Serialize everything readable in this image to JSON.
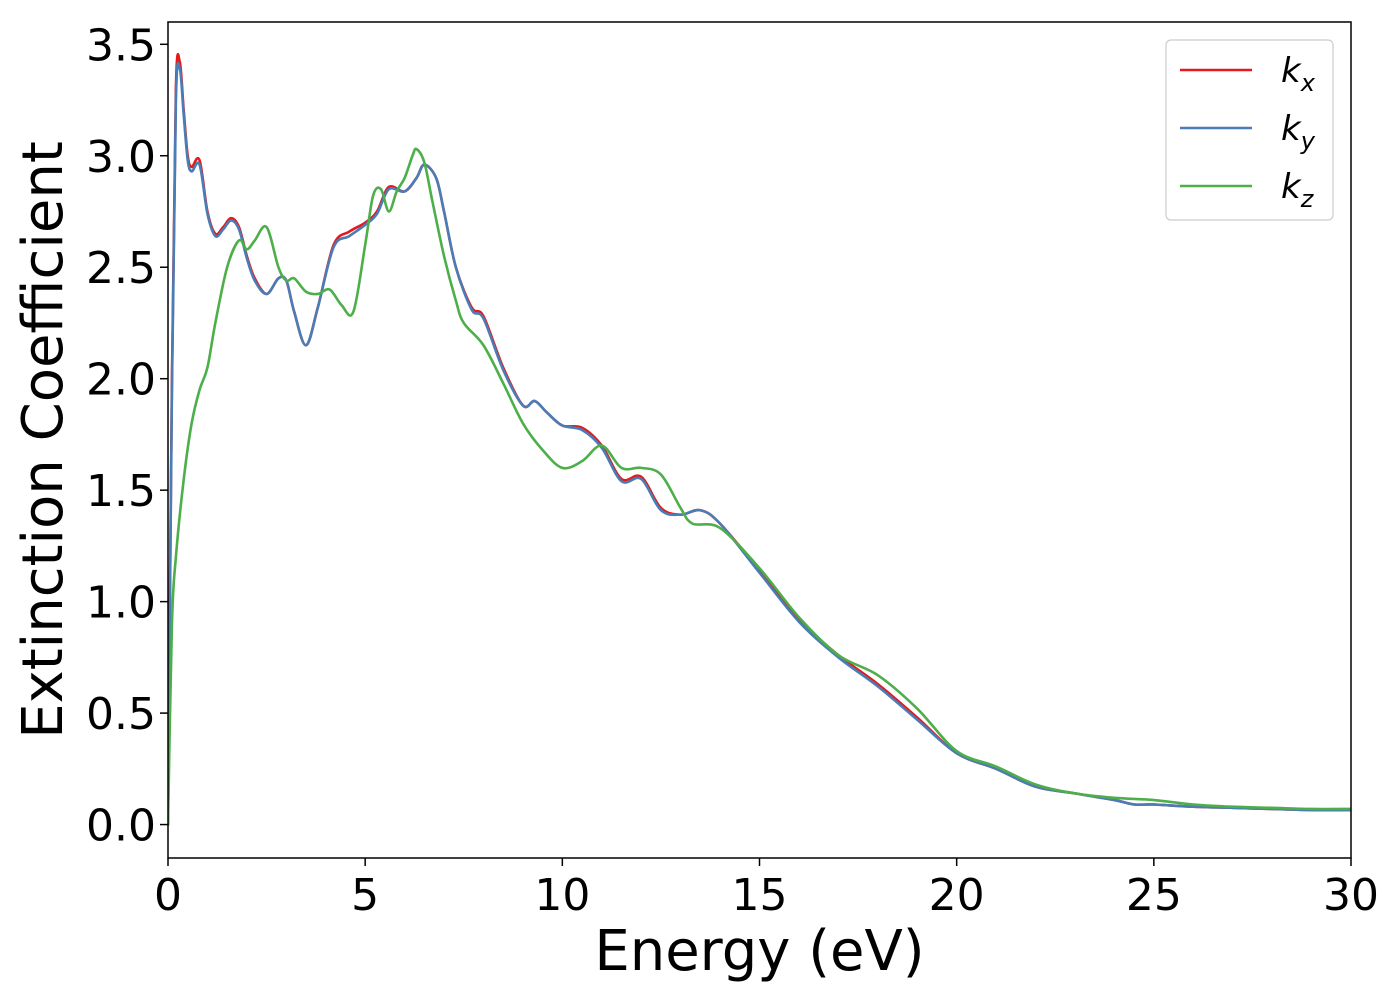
{
  "chart_data": {
    "type": "line",
    "title": "",
    "xlabel": "Energy (eV)",
    "ylabel": "Extinction Coefficient",
    "xlim": [
      0,
      30
    ],
    "ylim": [
      -0.15,
      3.6
    ],
    "xticks": [
      0,
      5,
      10,
      15,
      20,
      25,
      30
    ],
    "xtick_labels": [
      "0",
      "5",
      "10",
      "15",
      "20",
      "25",
      "30"
    ],
    "yticks": [
      0.0,
      0.5,
      1.0,
      1.5,
      2.0,
      2.5,
      3.0,
      3.5
    ],
    "ytick_labels": [
      "0.0",
      "0.5",
      "1.0",
      "1.5",
      "2.0",
      "2.5",
      "3.0",
      "3.5"
    ],
    "grid": false,
    "legend_position": "top-right",
    "series": [
      {
        "name": "k_x",
        "label_main": "k",
        "label_sub": "x",
        "color": "#e41a1c",
        "x": [
          0,
          0.1,
          0.2,
          0.3,
          0.4,
          0.5,
          0.6,
          0.8,
          1.0,
          1.2,
          1.4,
          1.6,
          1.8,
          2.0,
          2.2,
          2.5,
          2.8,
          3.0,
          3.2,
          3.5,
          3.8,
          4.2,
          4.6,
          5.0,
          5.3,
          5.6,
          6.0,
          6.3,
          6.5,
          6.8,
          7.0,
          7.3,
          7.7,
          8.0,
          8.5,
          9.0,
          9.3,
          9.6,
          10.0,
          10.5,
          11.0,
          11.5,
          12.0,
          12.5,
          13.0,
          13.5,
          14.0,
          15.0,
          16.0,
          17.0,
          18.0,
          19.0,
          20.0,
          21.0,
          22.0,
          23.0,
          24.0,
          24.5,
          25.0,
          26.0,
          27.0,
          28.0,
          29.0,
          30.0
        ],
        "y": [
          0.0,
          2.0,
          3.3,
          3.42,
          3.2,
          3.0,
          2.95,
          2.98,
          2.75,
          2.65,
          2.68,
          2.72,
          2.68,
          2.55,
          2.45,
          2.38,
          2.45,
          2.44,
          2.3,
          2.15,
          2.32,
          2.6,
          2.66,
          2.7,
          2.75,
          2.86,
          2.84,
          2.9,
          2.96,
          2.9,
          2.75,
          2.5,
          2.32,
          2.28,
          2.05,
          1.88,
          1.9,
          1.85,
          1.79,
          1.78,
          1.7,
          1.55,
          1.56,
          1.42,
          1.39,
          1.41,
          1.35,
          1.14,
          0.92,
          0.76,
          0.63,
          0.48,
          0.32,
          0.25,
          0.17,
          0.14,
          0.11,
          0.09,
          0.09,
          0.08,
          0.075,
          0.07,
          0.065,
          0.065
        ]
      },
      {
        "name": "k_y",
        "label_main": "k",
        "label_sub": "y",
        "color": "#4a7cb5",
        "x": [
          0,
          0.1,
          0.2,
          0.3,
          0.4,
          0.5,
          0.6,
          0.8,
          1.0,
          1.2,
          1.4,
          1.6,
          1.8,
          2.0,
          2.2,
          2.5,
          2.8,
          3.0,
          3.2,
          3.5,
          3.8,
          4.2,
          4.6,
          5.0,
          5.3,
          5.6,
          6.0,
          6.3,
          6.5,
          6.8,
          7.0,
          7.3,
          7.7,
          8.0,
          8.5,
          9.0,
          9.3,
          9.6,
          10.0,
          10.5,
          11.0,
          11.5,
          12.0,
          12.5,
          13.0,
          13.5,
          14.0,
          15.0,
          16.0,
          17.0,
          18.0,
          19.0,
          20.0,
          21.0,
          22.0,
          23.0,
          24.0,
          24.5,
          25.0,
          26.0,
          27.0,
          28.0,
          29.0,
          30.0
        ],
        "y": [
          0.0,
          1.95,
          3.25,
          3.39,
          3.18,
          2.98,
          2.93,
          2.96,
          2.74,
          2.64,
          2.67,
          2.71,
          2.67,
          2.54,
          2.44,
          2.38,
          2.45,
          2.44,
          2.3,
          2.15,
          2.32,
          2.59,
          2.64,
          2.69,
          2.74,
          2.85,
          2.84,
          2.9,
          2.96,
          2.9,
          2.75,
          2.5,
          2.31,
          2.27,
          2.04,
          1.88,
          1.9,
          1.85,
          1.79,
          1.77,
          1.69,
          1.54,
          1.55,
          1.41,
          1.39,
          1.41,
          1.35,
          1.13,
          0.91,
          0.75,
          0.62,
          0.47,
          0.32,
          0.25,
          0.17,
          0.14,
          0.11,
          0.09,
          0.09,
          0.08,
          0.075,
          0.07,
          0.065,
          0.065
        ]
      },
      {
        "name": "k_z",
        "label_main": "k",
        "label_sub": "z",
        "color": "#4daf4a",
        "x": [
          0,
          0.1,
          0.2,
          0.4,
          0.6,
          0.8,
          1.0,
          1.2,
          1.5,
          1.8,
          2.0,
          2.2,
          2.5,
          2.8,
          3.0,
          3.2,
          3.5,
          3.8,
          4.1,
          4.4,
          4.7,
          5.0,
          5.2,
          5.4,
          5.6,
          5.8,
          6.0,
          6.2,
          6.3,
          6.5,
          6.7,
          7.0,
          7.3,
          7.5,
          8.0,
          8.5,
          9.0,
          9.5,
          10.0,
          10.5,
          11.0,
          11.5,
          12.0,
          12.5,
          13.0,
          13.3,
          14.0,
          15.0,
          16.0,
          17.0,
          18.0,
          19.0,
          20.0,
          21.0,
          22.0,
          23.0,
          24.0,
          25.0,
          26.0,
          27.0,
          28.0,
          29.0,
          30.0
        ],
        "y": [
          0.0,
          0.9,
          1.2,
          1.55,
          1.8,
          1.95,
          2.05,
          2.25,
          2.5,
          2.62,
          2.58,
          2.62,
          2.68,
          2.5,
          2.44,
          2.45,
          2.39,
          2.38,
          2.4,
          2.33,
          2.3,
          2.6,
          2.82,
          2.85,
          2.75,
          2.84,
          2.9,
          3.0,
          3.03,
          2.97,
          2.8,
          2.55,
          2.35,
          2.25,
          2.15,
          1.98,
          1.8,
          1.68,
          1.6,
          1.63,
          1.7,
          1.6,
          1.6,
          1.57,
          1.42,
          1.35,
          1.33,
          1.15,
          0.93,
          0.76,
          0.67,
          0.52,
          0.33,
          0.26,
          0.18,
          0.14,
          0.12,
          0.11,
          0.09,
          0.08,
          0.075,
          0.07,
          0.07
        ]
      }
    ]
  }
}
